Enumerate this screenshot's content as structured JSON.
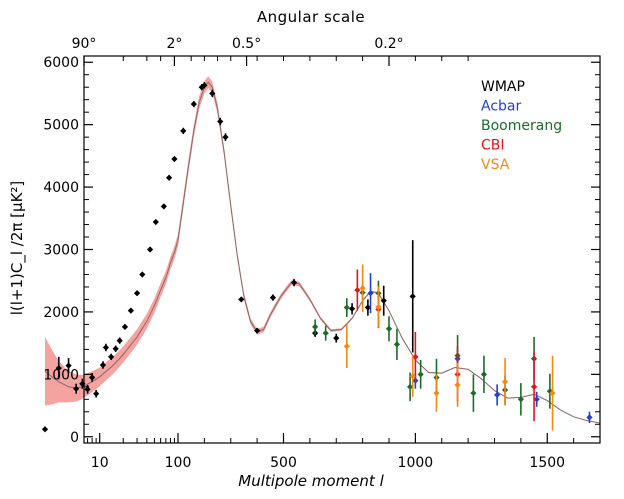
{
  "chart_data": {
    "type": "scatter",
    "title": "",
    "top_axis_label": "Angular scale",
    "top_ticks": [
      {
        "ell": 2,
        "label": "90°"
      },
      {
        "ell": 90,
        "label": "2°"
      },
      {
        "ell": 360,
        "label": "0.5°"
      },
      {
        "ell": 900,
        "label": "0.2°"
      }
    ],
    "xlabel": "Multipole moment l",
    "ylabel": "l(l+1)C_l /2π [μK²]",
    "x_scale": "log-then-linear, break at l=100, linear region 100-1700",
    "x_ticks": [
      {
        "ell": 10,
        "label": "10"
      },
      {
        "ell": 100,
        "label": "100"
      },
      {
        "ell": 500,
        "label": "500"
      },
      {
        "ell": 1000,
        "label": "1000"
      },
      {
        "ell": 1500,
        "label": "1500"
      }
    ],
    "ylim": [
      -100,
      6100
    ],
    "y_ticks": [
      0,
      1000,
      2000,
      3000,
      4000,
      5000,
      6000
    ],
    "legend": {
      "placement": "top-right",
      "entries": [
        {
          "name": "WMAP",
          "color": "#000000"
        },
        {
          "name": "Acbar",
          "color": "#1f3fd6"
        },
        {
          "name": "Boomerang",
          "color": "#1c6b2a"
        },
        {
          "name": "CBI",
          "color": "#e8121a"
        },
        {
          "name": "VSA",
          "color": "#f08a14"
        }
      ]
    },
    "band_color": "#f4a3a0",
    "model_curve_color": "#8a6a6a",
    "model_curve": [
      [
        2,
        1050
      ],
      [
        2.5,
        950
      ],
      [
        3,
        880
      ],
      [
        4,
        800
      ],
      [
        5,
        780
      ],
      [
        6,
        800
      ],
      [
        8,
        880
      ],
      [
        10,
        960
      ],
      [
        15,
        1150
      ],
      [
        20,
        1320
      ],
      [
        30,
        1600
      ],
      [
        40,
        1850
      ],
      [
        50,
        2100
      ],
      [
        60,
        2350
      ],
      [
        70,
        2550
      ],
      [
        80,
        2780
      ],
      [
        90,
        2950
      ],
      [
        100,
        3150
      ],
      [
        120,
        3750
      ],
      [
        140,
        4350
      ],
      [
        160,
        4900
      ],
      [
        180,
        5350
      ],
      [
        200,
        5600
      ],
      [
        215,
        5680
      ],
      [
        230,
        5600
      ],
      [
        250,
        5250
      ],
      [
        275,
        4550
      ],
      [
        300,
        3700
      ],
      [
        325,
        2900
      ],
      [
        350,
        2250
      ],
      [
        375,
        1850
      ],
      [
        400,
        1680
      ],
      [
        425,
        1720
      ],
      [
        450,
        1950
      ],
      [
        490,
        2250
      ],
      [
        530,
        2470
      ],
      [
        560,
        2450
      ],
      [
        600,
        2200
      ],
      [
        640,
        1900
      ],
      [
        680,
        1700
      ],
      [
        720,
        1720
      ],
      [
        760,
        1900
      ],
      [
        800,
        2180
      ],
      [
        830,
        2330
      ],
      [
        860,
        2300
      ],
      [
        900,
        2020
      ],
      [
        950,
        1580
      ],
      [
        1000,
        1230
      ],
      [
        1050,
        1030
      ],
      [
        1100,
        1020
      ],
      [
        1150,
        1110
      ],
      [
        1200,
        1080
      ],
      [
        1250,
        930
      ],
      [
        1300,
        740
      ],
      [
        1350,
        620
      ],
      [
        1400,
        630
      ],
      [
        1450,
        680
      ],
      [
        1500,
        580
      ],
      [
        1550,
        430
      ],
      [
        1600,
        320
      ],
      [
        1650,
        260
      ],
      [
        1700,
        220
      ]
    ],
    "band_halfwidth": [
      [
        2,
        550
      ],
      [
        3,
        330
      ],
      [
        4,
        250
      ],
      [
        6,
        190
      ],
      [
        10,
        150
      ],
      [
        20,
        130
      ],
      [
        40,
        120
      ],
      [
        100,
        100
      ],
      [
        200,
        100
      ],
      [
        300,
        70
      ],
      [
        400,
        45
      ],
      [
        500,
        45
      ],
      [
        600,
        30
      ],
      [
        700,
        20
      ],
      [
        800,
        15
      ],
      [
        1000,
        10
      ],
      [
        1700,
        5
      ]
    ],
    "series": [
      {
        "name": "WMAP",
        "color": "#000000",
        "points": [
          [
            2,
            120,
            0
          ],
          [
            3,
            1100,
            180
          ],
          [
            4,
            1140,
            120
          ],
          [
            5,
            770,
            80
          ],
          [
            6,
            850,
            80
          ],
          [
            7,
            760,
            70
          ],
          [
            8,
            950,
            70
          ],
          [
            9,
            690,
            60
          ],
          [
            11,
            1150,
            60
          ],
          [
            12,
            1430,
            60
          ],
          [
            14,
            1280,
            50
          ],
          [
            16,
            1410,
            50
          ],
          [
            18,
            1540,
            50
          ],
          [
            21,
            1760,
            40
          ],
          [
            25,
            2020,
            40
          ],
          [
            30,
            2300,
            40
          ],
          [
            35,
            2600,
            40
          ],
          [
            44,
            3000,
            40
          ],
          [
            52,
            3440,
            40
          ],
          [
            66,
            3690,
            40
          ],
          [
            77,
            4150,
            40
          ],
          [
            90,
            4450,
            40
          ],
          [
            120,
            4900,
            50
          ],
          [
            160,
            5330,
            50
          ],
          [
            190,
            5600,
            50
          ],
          [
            200,
            5630,
            50
          ],
          [
            230,
            5500,
            60
          ],
          [
            260,
            5050,
            60
          ],
          [
            280,
            4800,
            60
          ],
          [
            340,
            2200,
            40
          ],
          [
            400,
            1700,
            40
          ],
          [
            460,
            2230,
            50
          ],
          [
            540,
            2470,
            60
          ],
          [
            620,
            1660,
            60
          ],
          [
            700,
            1580,
            70
          ],
          [
            760,
            2050,
            90
          ],
          [
            820,
            2070,
            130
          ],
          [
            880,
            2180,
            240
          ],
          [
            990,
            2250,
            900
          ]
        ]
      },
      {
        "name": "Acbar",
        "color": "#1f3fd6",
        "points": [
          [
            830,
            2300,
            320
          ],
          [
            1000,
            900,
            130
          ],
          [
            1160,
            1250,
            200
          ],
          [
            1310,
            670,
            170
          ],
          [
            1460,
            600,
            120
          ],
          [
            1660,
            310,
            90
          ]
        ]
      },
      {
        "name": "Boomerang",
        "color": "#1c6b2a",
        "points": [
          [
            620,
            1760,
            120
          ],
          [
            660,
            1660,
            120
          ],
          [
            740,
            2070,
            150
          ],
          [
            800,
            2310,
            160
          ],
          [
            860,
            2300,
            200
          ],
          [
            900,
            1730,
            200
          ],
          [
            930,
            1480,
            250
          ],
          [
            980,
            800,
            230
          ],
          [
            1020,
            1000,
            230
          ],
          [
            1080,
            950,
            300
          ],
          [
            1160,
            1300,
            330
          ],
          [
            1220,
            700,
            300
          ],
          [
            1260,
            1000,
            300
          ],
          [
            1340,
            750,
            230
          ],
          [
            1400,
            600,
            260
          ],
          [
            1450,
            1250,
            350
          ],
          [
            1510,
            730,
            280
          ]
        ]
      },
      {
        "name": "CBI",
        "color": "#e8121a",
        "points": [
          [
            780,
            2350,
            330
          ],
          [
            860,
            2040,
            300
          ],
          [
            1000,
            1280,
            400
          ],
          [
            1160,
            1000,
            450
          ],
          [
            1450,
            800,
            550
          ]
        ]
      },
      {
        "name": "VSA",
        "color": "#f08a14",
        "points": [
          [
            740,
            1450,
            350
          ],
          [
            800,
            2380,
            380
          ],
          [
            860,
            2080,
            330
          ],
          [
            990,
            970,
            330
          ],
          [
            1080,
            700,
            300
          ],
          [
            1160,
            830,
            350
          ],
          [
            1340,
            880,
            380
          ],
          [
            1520,
            700,
            600
          ]
        ]
      }
    ]
  }
}
